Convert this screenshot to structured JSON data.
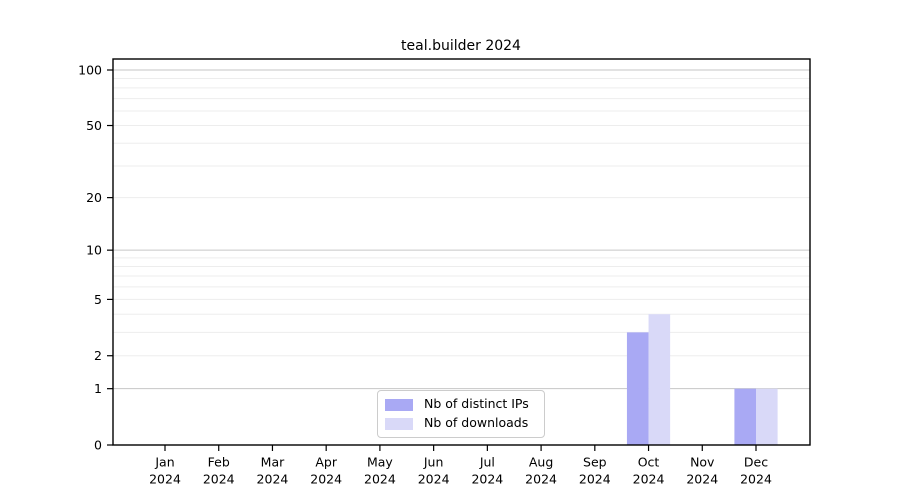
{
  "chart_data": {
    "type": "bar",
    "title": "teal.builder 2024",
    "xlabel": "",
    "ylabel": "",
    "categories": [
      "Jan",
      "Feb",
      "Mar",
      "Apr",
      "May",
      "Jun",
      "Jul",
      "Aug",
      "Sep",
      "Oct",
      "Nov",
      "Dec"
    ],
    "category_year": "2024",
    "series": [
      {
        "name": "Nb of distinct IPs",
        "color": "#a9a9f4",
        "values": [
          0,
          0,
          0,
          0,
          0,
          0,
          0,
          0,
          0,
          3,
          0,
          1
        ]
      },
      {
        "name": "Nb of downloads",
        "color": "#d9d9f8",
        "values": [
          0,
          0,
          0,
          0,
          0,
          0,
          0,
          0,
          0,
          4,
          0,
          1
        ]
      }
    ],
    "y_scale": "log1p",
    "y_ticks": [
      0,
      1,
      2,
      5,
      10,
      20,
      50,
      100
    ],
    "y_major_gridlines": [
      1,
      10,
      100
    ],
    "y_minor_gridlines": [
      2,
      3,
      4,
      5,
      6,
      7,
      8,
      9,
      20,
      30,
      40,
      50,
      60,
      70,
      80,
      90
    ],
    "ylim": [
      0,
      115
    ],
    "grid": "on",
    "legend_position": "lower-center-inside",
    "colors": {
      "major_grid": "#c6c6c6",
      "minor_grid": "#ededed",
      "axis": "#000000",
      "tick_text": "#000000",
      "background": "#ffffff"
    }
  }
}
